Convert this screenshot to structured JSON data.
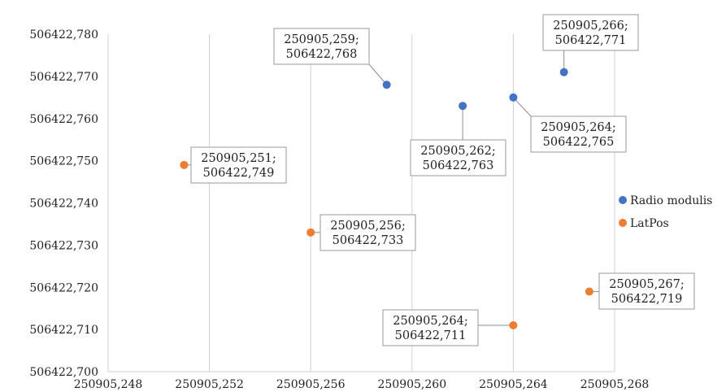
{
  "chart_data": {
    "type": "scatter",
    "xlim": [
      250905.248,
      250905.268
    ],
    "ylim": [
      506422.7,
      506422.78
    ],
    "x_ticks": [
      "250905,248",
      "250905,252",
      "250905,256",
      "250905,260",
      "250905,264",
      "250905,268"
    ],
    "y_ticks": [
      "506422,700",
      "506422,710",
      "506422,720",
      "506422,730",
      "506422,740",
      "506422,750",
      "506422,760",
      "506422,770",
      "506422,780"
    ],
    "grid": "vertical",
    "legend_position": "right",
    "series": [
      {
        "name": "Radio modulis",
        "color": "#4472C4",
        "points": [
          {
            "x": 250905.259,
            "y": 506422.768,
            "label": [
              "250905,259;",
              "506422,768"
            ]
          },
          {
            "x": 250905.262,
            "y": 506422.763,
            "label": [
              "250905,262;",
              "506422,763"
            ]
          },
          {
            "x": 250905.264,
            "y": 506422.765,
            "label": [
              "250905,264;",
              "506422,765"
            ]
          },
          {
            "x": 250905.266,
            "y": 506422.771,
            "label": [
              "250905,266;",
              "506422,771"
            ]
          }
        ]
      },
      {
        "name": "LatPos",
        "color": "#ED7D31",
        "points": [
          {
            "x": 250905.251,
            "y": 506422.749,
            "label": [
              "250905,251;",
              "506422,749"
            ]
          },
          {
            "x": 250905.256,
            "y": 506422.733,
            "label": [
              "250905,256;",
              "506422,733"
            ]
          },
          {
            "x": 250905.264,
            "y": 506422.711,
            "label": [
              "250905,264;",
              "506422,711"
            ]
          },
          {
            "x": 250905.267,
            "y": 506422.719,
            "label": [
              "250905,267;",
              "506422,719"
            ]
          }
        ]
      }
    ]
  }
}
